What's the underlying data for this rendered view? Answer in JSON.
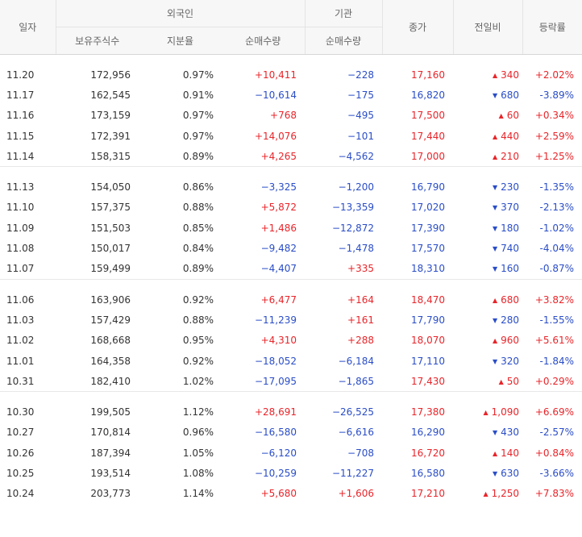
{
  "header": {
    "date": "일자",
    "foreign": "외국인",
    "institution": "기관",
    "close": "종가",
    "change": "전일비",
    "rate": "등락률",
    "holdings": "보유주식수",
    "ratio": "지분율",
    "foreign_net": "순매수량",
    "inst_net": "순매수량"
  },
  "colors": {
    "up": "#e8252a",
    "down": "#2a4dc7"
  },
  "groups": [
    {
      "rows": [
        {
          "date": "11.20",
          "holdings": "172,956",
          "ratio": "0.97%",
          "foreign_net": "+10,411",
          "inst_net": "−228",
          "close": "17,160",
          "dir": "up",
          "change": "340",
          "rate": "+2.02%"
        },
        {
          "date": "11.17",
          "holdings": "162,545",
          "ratio": "0.91%",
          "foreign_net": "−10,614",
          "inst_net": "−175",
          "close": "16,820",
          "dir": "down",
          "change": "680",
          "rate": "-3.89%"
        },
        {
          "date": "11.16",
          "holdings": "173,159",
          "ratio": "0.97%",
          "foreign_net": "+768",
          "inst_net": "−495",
          "close": "17,500",
          "dir": "up",
          "change": "60",
          "rate": "+0.34%"
        },
        {
          "date": "11.15",
          "holdings": "172,391",
          "ratio": "0.97%",
          "foreign_net": "+14,076",
          "inst_net": "−101",
          "close": "17,440",
          "dir": "up",
          "change": "440",
          "rate": "+2.59%"
        },
        {
          "date": "11.14",
          "holdings": "158,315",
          "ratio": "0.89%",
          "foreign_net": "+4,265",
          "inst_net": "−4,562",
          "close": "17,000",
          "dir": "up",
          "change": "210",
          "rate": "+1.25%"
        }
      ]
    },
    {
      "rows": [
        {
          "date": "11.13",
          "holdings": "154,050",
          "ratio": "0.86%",
          "foreign_net": "−3,325",
          "inst_net": "−1,200",
          "close": "16,790",
          "dir": "down",
          "change": "230",
          "rate": "-1.35%"
        },
        {
          "date": "11.10",
          "holdings": "157,375",
          "ratio": "0.88%",
          "foreign_net": "+5,872",
          "inst_net": "−13,359",
          "close": "17,020",
          "dir": "down",
          "change": "370",
          "rate": "-2.13%"
        },
        {
          "date": "11.09",
          "holdings": "151,503",
          "ratio": "0.85%",
          "foreign_net": "+1,486",
          "inst_net": "−12,872",
          "close": "17,390",
          "dir": "down",
          "change": "180",
          "rate": "-1.02%"
        },
        {
          "date": "11.08",
          "holdings": "150,017",
          "ratio": "0.84%",
          "foreign_net": "−9,482",
          "inst_net": "−1,478",
          "close": "17,570",
          "dir": "down",
          "change": "740",
          "rate": "-4.04%"
        },
        {
          "date": "11.07",
          "holdings": "159,499",
          "ratio": "0.89%",
          "foreign_net": "−4,407",
          "inst_net": "+335",
          "close": "18,310",
          "dir": "down",
          "change": "160",
          "rate": "-0.87%"
        }
      ]
    },
    {
      "rows": [
        {
          "date": "11.06",
          "holdings": "163,906",
          "ratio": "0.92%",
          "foreign_net": "+6,477",
          "inst_net": "+164",
          "close": "18,470",
          "dir": "up",
          "change": "680",
          "rate": "+3.82%"
        },
        {
          "date": "11.03",
          "holdings": "157,429",
          "ratio": "0.88%",
          "foreign_net": "−11,239",
          "inst_net": "+161",
          "close": "17,790",
          "dir": "down",
          "change": "280",
          "rate": "-1.55%"
        },
        {
          "date": "11.02",
          "holdings": "168,668",
          "ratio": "0.95%",
          "foreign_net": "+4,310",
          "inst_net": "+288",
          "close": "18,070",
          "dir": "up",
          "change": "960",
          "rate": "+5.61%"
        },
        {
          "date": "11.01",
          "holdings": "164,358",
          "ratio": "0.92%",
          "foreign_net": "−18,052",
          "inst_net": "−6,184",
          "close": "17,110",
          "dir": "down",
          "change": "320",
          "rate": "-1.84%"
        },
        {
          "date": "10.31",
          "holdings": "182,410",
          "ratio": "1.02%",
          "foreign_net": "−17,095",
          "inst_net": "−1,865",
          "close": "17,430",
          "dir": "up",
          "change": "50",
          "rate": "+0.29%"
        }
      ]
    },
    {
      "rows": [
        {
          "date": "10.30",
          "holdings": "199,505",
          "ratio": "1.12%",
          "foreign_net": "+28,691",
          "inst_net": "−26,525",
          "close": "17,380",
          "dir": "up",
          "change": "1,090",
          "rate": "+6.69%"
        },
        {
          "date": "10.27",
          "holdings": "170,814",
          "ratio": "0.96%",
          "foreign_net": "−16,580",
          "inst_net": "−6,616",
          "close": "16,290",
          "dir": "down",
          "change": "430",
          "rate": "-2.57%"
        },
        {
          "date": "10.26",
          "holdings": "187,394",
          "ratio": "1.05%",
          "foreign_net": "−6,120",
          "inst_net": "−708",
          "close": "16,720",
          "dir": "up",
          "change": "140",
          "rate": "+0.84%"
        },
        {
          "date": "10.25",
          "holdings": "193,514",
          "ratio": "1.08%",
          "foreign_net": "−10,259",
          "inst_net": "−11,227",
          "close": "16,580",
          "dir": "down",
          "change": "630",
          "rate": "-3.66%"
        },
        {
          "date": "10.24",
          "holdings": "203,773",
          "ratio": "1.14%",
          "foreign_net": "+5,680",
          "inst_net": "+1,606",
          "close": "17,210",
          "dir": "up",
          "change": "1,250",
          "rate": "+7.83%"
        }
      ]
    }
  ]
}
